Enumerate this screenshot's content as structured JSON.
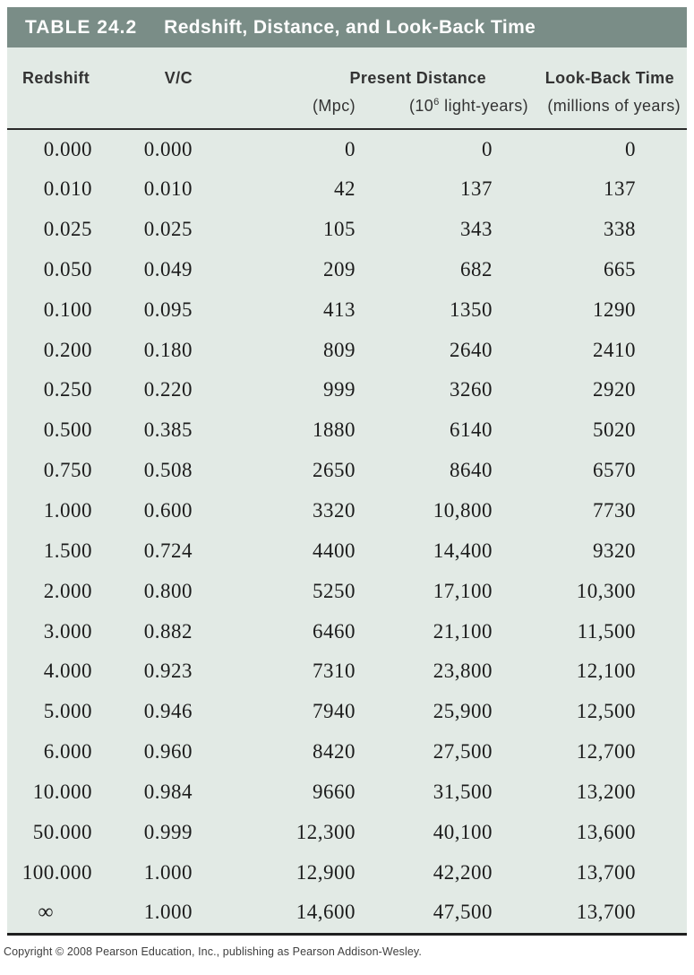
{
  "table": {
    "tag": "TABLE 24.2",
    "title": "Redshift, Distance, and Look-Back Time"
  },
  "columns": {
    "redshift": "Redshift",
    "v_over_c": "V/C",
    "present_distance": "Present Distance",
    "present_distance_units": {
      "mpc": "(Mpc)",
      "ly_prefix": "(10",
      "ly_sup": "6",
      "ly_suffix": " light-years)"
    },
    "look_back": "Look-Back Time",
    "look_back_unit": "(millions of years)"
  },
  "infinity_symbol": "∞",
  "rows": [
    [
      "0.000",
      "0.000",
      "0",
      "0",
      "0"
    ],
    [
      "0.010",
      "0.010",
      "42",
      "137",
      "137"
    ],
    [
      "0.025",
      "0.025",
      "105",
      "343",
      "338"
    ],
    [
      "0.050",
      "0.049",
      "209",
      "682",
      "665"
    ],
    [
      "0.100",
      "0.095",
      "413",
      "1350",
      "1290"
    ],
    [
      "0.200",
      "0.180",
      "809",
      "2640",
      "2410"
    ],
    [
      "0.250",
      "0.220",
      "999",
      "3260",
      "2920"
    ],
    [
      "0.500",
      "0.385",
      "1880",
      "6140",
      "5020"
    ],
    [
      "0.750",
      "0.508",
      "2650",
      "8640",
      "6570"
    ],
    [
      "1.000",
      "0.600",
      "3320",
      "10,800",
      "7730"
    ],
    [
      "1.500",
      "0.724",
      "4400",
      "14,400",
      "9320"
    ],
    [
      "2.000",
      "0.800",
      "5250",
      "17,100",
      "10,300"
    ],
    [
      "3.000",
      "0.882",
      "6460",
      "21,100",
      "11,500"
    ],
    [
      "4.000",
      "0.923",
      "7310",
      "23,800",
      "12,100"
    ],
    [
      "5.000",
      "0.946",
      "7940",
      "25,900",
      "12,500"
    ],
    [
      "6.000",
      "0.960",
      "8420",
      "27,500",
      "12,700"
    ],
    [
      "10.000",
      "0.984",
      "9660",
      "31,500",
      "13,200"
    ],
    [
      "50.000",
      "0.999",
      "12,300",
      "40,100",
      "13,600"
    ],
    [
      "100.000",
      "1.000",
      "12,900",
      "42,200",
      "13,700"
    ],
    [
      "∞",
      "1.000",
      "14,600",
      "47,500",
      "13,700"
    ]
  ],
  "copyright": "Copyright © 2008 Pearson Education, Inc., publishing as Pearson Addison-Wesley.",
  "colors": {
    "header_bar": "#7A8D87",
    "table_background": "#E2EAE5",
    "rule": "#1f1f1f"
  }
}
